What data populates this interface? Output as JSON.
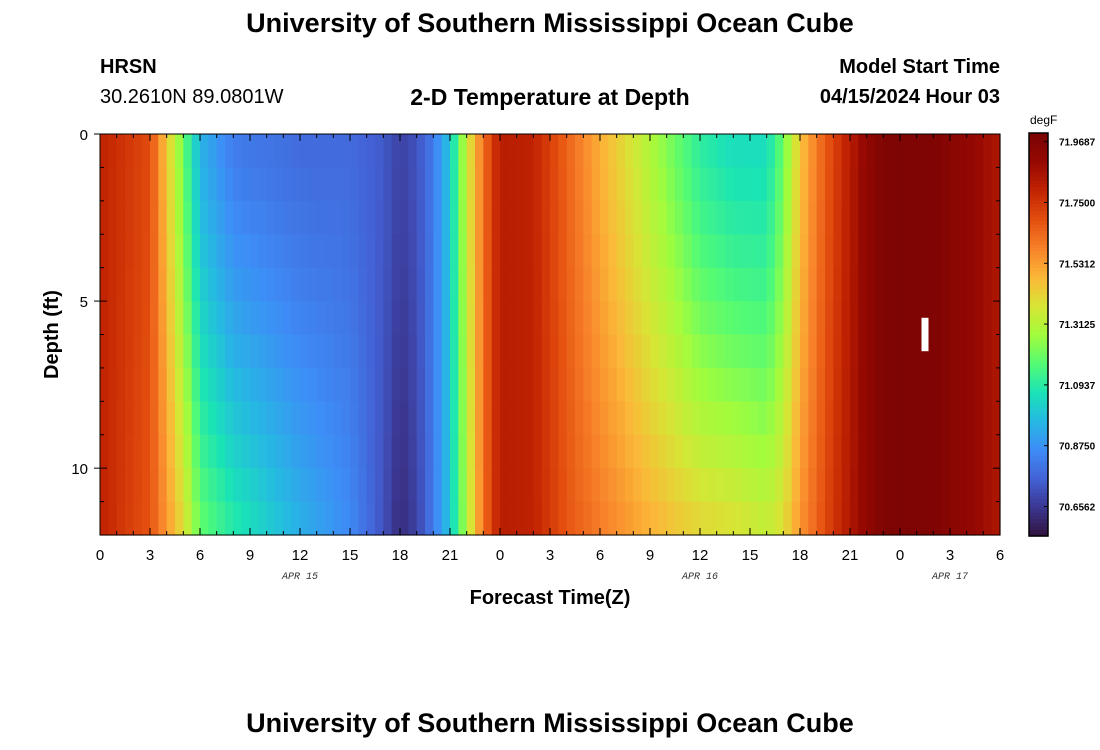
{
  "header": {
    "title_top": "University of Southern Mississippi Ocean Cube",
    "station": "HRSN",
    "coords": "30.2610N  89.0801W",
    "plot_title": "2-D Temperature at Depth",
    "model_start_label": "Model Start Time",
    "model_start_value": "04/15/2024 Hour 03",
    "title_bottom": "University of Southern Mississippi Ocean Cube"
  },
  "colors": {
    "colormap": [
      "#30123b",
      "#3b3690",
      "#4362d6",
      "#3e8cf7",
      "#26b8e3",
      "#1ae3b6",
      "#53fb74",
      "#a2fc3c",
      "#d7e535",
      "#fbb838",
      "#f8822a",
      "#e44f0f",
      "#c22402",
      "#960902",
      "#7a0403"
    ],
    "highlight_bar": "#ffffff"
  },
  "chart_data": {
    "type": "heatmap",
    "xlabel": "Forecast Time(Z)",
    "ylabel": "Depth (ft)",
    "x_range_hours": [
      0,
      54
    ],
    "y_range_ft": [
      0,
      12
    ],
    "x_ticks": [
      {
        "hour": 0,
        "label": "0"
      },
      {
        "hour": 3,
        "label": "3"
      },
      {
        "hour": 6,
        "label": "6"
      },
      {
        "hour": 9,
        "label": "9"
      },
      {
        "hour": 12,
        "label": "12"
      },
      {
        "hour": 15,
        "label": "15"
      },
      {
        "hour": 18,
        "label": "18"
      },
      {
        "hour": 21,
        "label": "21"
      },
      {
        "hour": 24,
        "label": "0"
      },
      {
        "hour": 27,
        "label": "3"
      },
      {
        "hour": 30,
        "label": "6"
      },
      {
        "hour": 33,
        "label": "9"
      },
      {
        "hour": 36,
        "label": "12"
      },
      {
        "hour": 39,
        "label": "15"
      },
      {
        "hour": 42,
        "label": "18"
      },
      {
        "hour": 45,
        "label": "21"
      },
      {
        "hour": 48,
        "label": "0"
      },
      {
        "hour": 51,
        "label": "3"
      },
      {
        "hour": 54,
        "label": "6"
      }
    ],
    "date_labels": [
      {
        "hour": 12,
        "label": "APR 15"
      },
      {
        "hour": 36,
        "label": "APR 16"
      },
      {
        "hour": 51,
        "label": "APR 17"
      }
    ],
    "y_ticks": [
      {
        "depth": 0,
        "label": "0"
      },
      {
        "depth": 5,
        "label": "5"
      },
      {
        "depth": 10,
        "label": "10"
      }
    ],
    "colorbar": {
      "unit": "degF",
      "range": [
        70.55,
        72.0
      ],
      "labels": [
        71.9687,
        71.75,
        71.5312,
        71.3125,
        71.0937,
        70.875,
        70.6562
      ],
      "label_texts": [
        "71.9687",
        "71.7500",
        "71.5312",
        "71.3125",
        "71.0937",
        "70.8750",
        "70.6562"
      ]
    },
    "profile_hours": [
      0,
      3,
      4,
      5,
      6,
      8,
      12,
      15,
      17,
      18,
      19,
      20,
      21,
      22,
      23,
      24,
      26,
      28,
      30,
      33,
      36,
      38,
      40,
      41,
      42,
      43,
      44,
      45,
      46,
      47,
      48,
      50,
      52,
      54
    ],
    "profile_surface": [
      71.8,
      71.7,
      71.45,
      71.2,
      70.95,
      70.82,
      70.78,
      70.78,
      70.74,
      70.68,
      70.72,
      70.82,
      71.0,
      71.35,
      71.62,
      71.82,
      71.8,
      71.65,
      71.5,
      71.3,
      71.1,
      71.05,
      71.05,
      71.2,
      71.45,
      71.6,
      71.72,
      71.82,
      71.92,
      71.98,
      71.99,
      71.98,
      71.92,
      71.84
    ],
    "profile_bottom": [
      71.8,
      71.68,
      71.55,
      71.4,
      71.2,
      71.1,
      70.95,
      70.86,
      70.72,
      70.62,
      70.68,
      70.82,
      71.0,
      71.3,
      71.62,
      71.82,
      71.8,
      71.68,
      71.6,
      71.5,
      71.42,
      71.4,
      71.35,
      71.4,
      71.55,
      71.65,
      71.75,
      71.84,
      71.92,
      71.98,
      71.99,
      71.98,
      71.92,
      71.84
    ],
    "highlight_marker": {
      "hour": 49.5,
      "depth_range": [
        5.5,
        6.5
      ]
    }
  }
}
